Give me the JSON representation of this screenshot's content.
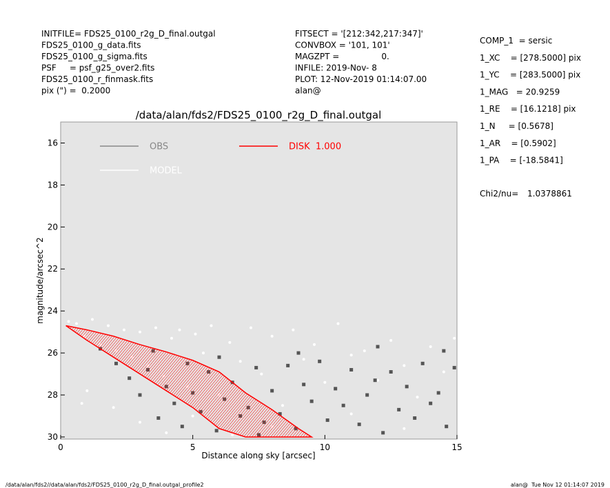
{
  "header_left": [
    "INITFILE= FDS25_0100_r2g_D_final.outgal",
    "FDS25_0100_g_data.fits",
    "FDS25_0100_g_sigma.fits",
    "PSF     = psf_g25_over2.fits",
    "FDS25_0100_r_finmask.fits",
    "pix (\") =  0.2000"
  ],
  "header_mid": [
    "FITSECT = '[212:342,217:347]'",
    "CONVBOX = '101, 101'",
    "MAGZPT =                0.",
    "INFILE: 2019-Nov- 8",
    "PLOT: 12-Nov-2019 01:14:07.00",
    "alan@"
  ],
  "params": [
    "COMP_1  = sersic",
    "1_XC    = [278.5000] pix",
    "1_YC    = [283.5000] pix",
    "1_MAG   = 20.9259",
    "1_RE    = [16.1218] pix",
    "1_N     = [0.5678]",
    "1_AR    = [0.5902]",
    "1_PA    = [-18.5841]"
  ],
  "chi2": {
    "label": "Chi2/nu=",
    "value": "1.0378861"
  },
  "footer_left": "/data/alan/fds2//data/alan/fds2/FDS25_0100_r2g_D_final.outgal_profile2",
  "footer_right": "alan@  Tue Nov 12 01:14:07 2019",
  "chart_data": {
    "type": "scatter",
    "title": "/data/alan/fds2/FDS25_0100_r2g_D_final.outgal",
    "x_label": "Distance along sky [arcsec]",
    "y_label": "magnitude/arcsec^2",
    "xlim": [
      0,
      15
    ],
    "ylim": [
      15,
      30.1
    ],
    "y_inverted": true,
    "xticks": [
      0,
      5,
      10,
      15
    ],
    "yticks": [
      16,
      18,
      20,
      22,
      24,
      26,
      28,
      30
    ],
    "series": [
      {
        "name": "OBS",
        "color": "#555555",
        "marker": "square",
        "x": [
          2.1,
          2.6,
          3.0,
          3.3,
          3.7,
          4.0,
          4.3,
          4.6,
          5.0,
          5.3,
          5.6,
          5.9,
          6.2,
          6.5,
          6.8,
          7.1,
          7.4,
          7.7,
          8.0,
          8.3,
          8.6,
          8.9,
          9.2,
          9.5,
          9.8,
          10.1,
          10.4,
          10.7,
          11.0,
          11.3,
          11.6,
          11.9,
          12.2,
          12.5,
          12.8,
          13.1,
          13.4,
          13.7,
          14.0,
          14.3,
          14.6,
          14.9,
          1.5,
          3.5,
          6.0,
          9.0,
          12.0,
          14.5,
          4.8,
          7.5
        ],
        "values": [
          26.5,
          27.2,
          28.0,
          26.8,
          29.1,
          27.6,
          28.4,
          29.5,
          27.9,
          28.8,
          26.9,
          29.7,
          28.2,
          27.4,
          29.0,
          28.6,
          26.7,
          29.3,
          27.8,
          28.9,
          26.6,
          29.6,
          27.5,
          28.3,
          26.4,
          29.2,
          27.7,
          28.5,
          26.8,
          29.4,
          28.0,
          27.3,
          29.8,
          26.9,
          28.7,
          27.6,
          29.1,
          26.5,
          28.4,
          27.9,
          29.5,
          26.7,
          25.8,
          25.9,
          26.2,
          26.0,
          25.7,
          25.9,
          26.5,
          29.9
        ]
      },
      {
        "name": "MODEL",
        "color": "#ffffff",
        "marker": "dot",
        "x": [
          0.3,
          0.6,
          0.9,
          1.2,
          1.5,
          1.8,
          2.1,
          2.4,
          2.7,
          3.0,
          3.3,
          3.6,
          3.9,
          4.2,
          4.5,
          4.8,
          5.1,
          5.4,
          5.7,
          6.0,
          6.4,
          6.8,
          7.2,
          7.6,
          8.0,
          8.4,
          8.8,
          9.2,
          9.6,
          10.0,
          10.5,
          11.0,
          11.5,
          12.0,
          12.5,
          13.0,
          13.5,
          14.0,
          14.5,
          14.9,
          1.0,
          2.0,
          3.0,
          4.0,
          5.0,
          8.0,
          11.0,
          13.0,
          0.8,
          6.5
        ],
        "values": [
          24.5,
          24.6,
          25.2,
          24.4,
          25.6,
          24.7,
          25.9,
          24.9,
          26.2,
          25.0,
          26.6,
          24.8,
          27.1,
          25.3,
          24.9,
          27.6,
          25.1,
          26.0,
          24.7,
          28.0,
          25.5,
          26.4,
          24.8,
          27.0,
          25.2,
          28.5,
          24.9,
          26.3,
          25.6,
          27.4,
          24.6,
          26.1,
          25.9,
          27.3,
          25.4,
          26.6,
          28.1,
          25.7,
          26.9,
          25.3,
          27.8,
          28.6,
          29.3,
          29.8,
          29.0,
          29.5,
          28.9,
          29.6,
          28.4,
          29.9
        ]
      },
      {
        "name": "DISK  1.000",
        "color": "#ff0000",
        "marker": "polygon",
        "x": [
          0.2,
          1,
          2,
          3,
          4,
          5,
          6,
          7,
          8,
          9,
          9.5,
          8,
          7,
          6,
          5,
          4,
          3,
          2,
          1
        ],
        "values": [
          24.7,
          24.9,
          25.2,
          25.6,
          25.95,
          26.35,
          26.9,
          27.9,
          28.7,
          29.6,
          30.0,
          30.0,
          30.0,
          29.6,
          28.6,
          27.8,
          27.0,
          26.2,
          25.4
        ]
      }
    ]
  }
}
